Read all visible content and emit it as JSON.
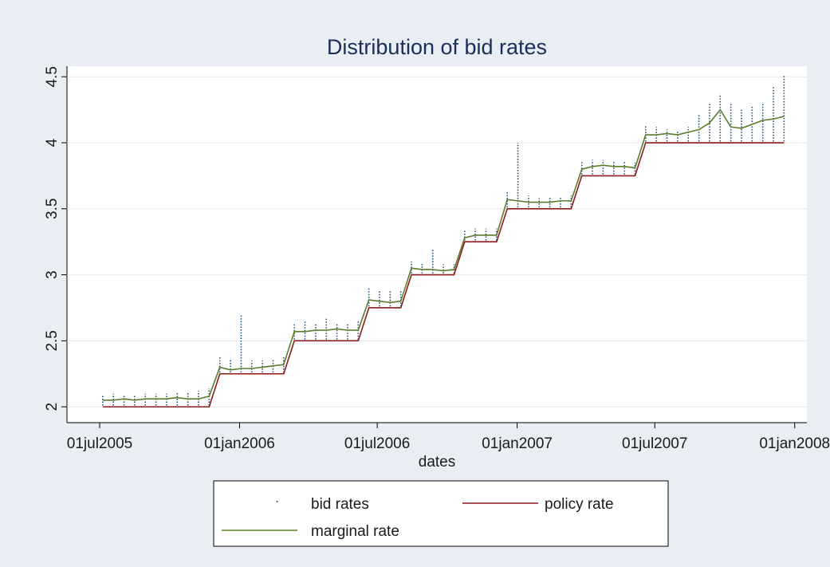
{
  "chart_data": {
    "type": "line",
    "title": "Distribution of bid rates",
    "x_label": "dates",
    "x": [
      "2005-07-05",
      "2005-07-19",
      "2005-08-02",
      "2005-08-16",
      "2005-08-30",
      "2005-09-13",
      "2005-09-27",
      "2005-10-11",
      "2005-10-25",
      "2005-11-08",
      "2005-11-22",
      "2005-12-06",
      "2005-12-20",
      "2006-01-03",
      "2006-01-17",
      "2006-01-31",
      "2006-02-14",
      "2006-02-28",
      "2006-03-14",
      "2006-03-28",
      "2006-04-11",
      "2006-04-25",
      "2006-05-09",
      "2006-05-23",
      "2006-06-06",
      "2006-06-20",
      "2006-07-04",
      "2006-07-18",
      "2006-08-01",
      "2006-08-15",
      "2006-08-29",
      "2006-09-12",
      "2006-09-26",
      "2006-10-10",
      "2006-10-24",
      "2006-11-07",
      "2006-11-21",
      "2006-12-05",
      "2006-12-19",
      "2007-01-02",
      "2007-01-16",
      "2007-01-30",
      "2007-02-13",
      "2007-02-27",
      "2007-03-13",
      "2007-03-27",
      "2007-04-10",
      "2007-04-24",
      "2007-05-08",
      "2007-05-22",
      "2007-06-05",
      "2007-06-19",
      "2007-07-03",
      "2007-07-17",
      "2007-07-31",
      "2007-08-14",
      "2007-08-28",
      "2007-09-11",
      "2007-09-25",
      "2007-10-09",
      "2007-10-23",
      "2007-11-06",
      "2007-11-20",
      "2007-12-04",
      "2007-12-18"
    ],
    "series": [
      {
        "name": "bid rates",
        "style": "range",
        "color": "#1f4e79",
        "low": [
          2.01,
          2.01,
          2.01,
          2.01,
          2.01,
          2.01,
          2.01,
          2.01,
          2.01,
          2.01,
          2.01,
          2.26,
          2.26,
          2.26,
          2.26,
          2.26,
          2.26,
          2.26,
          2.51,
          2.51,
          2.51,
          2.51,
          2.51,
          2.51,
          2.51,
          2.76,
          2.76,
          2.76,
          2.76,
          3.01,
          3.01,
          3.01,
          3.01,
          3.01,
          3.26,
          3.26,
          3.26,
          3.26,
          3.51,
          3.51,
          3.51,
          3.51,
          3.51,
          3.51,
          3.51,
          3.76,
          3.76,
          3.76,
          3.76,
          3.76,
          3.76,
          4.01,
          4.01,
          4.01,
          4.01,
          4.01,
          4.01,
          4.01,
          4.01,
          4.01,
          4.01,
          4.01,
          4.01,
          4.01,
          4.01
        ],
        "high": [
          2.09,
          2.1,
          2.09,
          2.09,
          2.1,
          2.1,
          2.1,
          2.11,
          2.11,
          2.12,
          2.14,
          2.38,
          2.36,
          2.7,
          2.35,
          2.35,
          2.36,
          2.38,
          2.63,
          2.65,
          2.63,
          2.67,
          2.63,
          2.63,
          2.65,
          2.9,
          2.88,
          2.88,
          2.88,
          3.1,
          3.09,
          3.2,
          3.08,
          3.08,
          3.34,
          3.35,
          3.35,
          3.35,
          3.63,
          4.0,
          3.6,
          3.58,
          3.59,
          3.59,
          3.6,
          3.86,
          3.87,
          3.87,
          3.86,
          3.86,
          3.85,
          4.13,
          4.12,
          4.1,
          4.09,
          4.12,
          4.22,
          4.3,
          4.37,
          4.3,
          4.25,
          4.28,
          4.3,
          4.42,
          4.51
        ]
      },
      {
        "name": "policy rate",
        "style": "line",
        "color": "#8b1a1a",
        "values": [
          2.0,
          2.0,
          2.0,
          2.0,
          2.0,
          2.0,
          2.0,
          2.0,
          2.0,
          2.0,
          2.0,
          2.25,
          2.25,
          2.25,
          2.25,
          2.25,
          2.25,
          2.25,
          2.5,
          2.5,
          2.5,
          2.5,
          2.5,
          2.5,
          2.5,
          2.75,
          2.75,
          2.75,
          2.75,
          3.0,
          3.0,
          3.0,
          3.0,
          3.0,
          3.25,
          3.25,
          3.25,
          3.25,
          3.5,
          3.5,
          3.5,
          3.5,
          3.5,
          3.5,
          3.5,
          3.75,
          3.75,
          3.75,
          3.75,
          3.75,
          3.75,
          4.0,
          4.0,
          4.0,
          4.0,
          4.0,
          4.0,
          4.0,
          4.0,
          4.0,
          4.0,
          4.0,
          4.0,
          4.0,
          4.0
        ]
      },
      {
        "name": "marginal rate",
        "style": "line",
        "color": "#5a7d2a",
        "values": [
          2.05,
          2.05,
          2.06,
          2.05,
          2.06,
          2.06,
          2.06,
          2.07,
          2.06,
          2.06,
          2.08,
          2.3,
          2.28,
          2.29,
          2.29,
          2.3,
          2.31,
          2.32,
          2.57,
          2.57,
          2.58,
          2.58,
          2.59,
          2.58,
          2.58,
          2.81,
          2.8,
          2.79,
          2.8,
          3.05,
          3.04,
          3.04,
          3.03,
          3.04,
          3.28,
          3.3,
          3.3,
          3.3,
          3.57,
          3.56,
          3.55,
          3.55,
          3.55,
          3.56,
          3.56,
          3.8,
          3.82,
          3.83,
          3.82,
          3.82,
          3.81,
          4.06,
          4.06,
          4.07,
          4.06,
          4.08,
          4.1,
          4.15,
          4.25,
          4.12,
          4.11,
          4.14,
          4.17,
          4.18,
          4.2
        ]
      }
    ],
    "xlim": [
      "2005-05-19",
      "2008-01-17"
    ],
    "xticks": [
      {
        "value": "2005-07-01",
        "label": "01jul2005"
      },
      {
        "value": "2006-01-01",
        "label": "01jan2006"
      },
      {
        "value": "2006-07-01",
        "label": "01jul2006"
      },
      {
        "value": "2007-01-01",
        "label": "01jan2007"
      },
      {
        "value": "2007-07-01",
        "label": "01jul2007"
      },
      {
        "value": "2008-01-01",
        "label": "01jan2008"
      }
    ],
    "ylim": [
      1.88,
      4.58
    ],
    "yticks": [
      2,
      2.5,
      3,
      3.5,
      4,
      4.5
    ],
    "grid": true,
    "legend": "bottom"
  }
}
